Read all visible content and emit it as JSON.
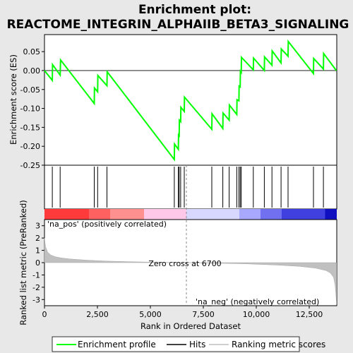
{
  "chart_data": {
    "type": "line",
    "title": "Enrichment plot:",
    "subtitle": "REACTOME_INTEGRIN_ALPHAIIB_BETA3_SIGNALING",
    "colors": {
      "enrichment": "#00ff00",
      "hits": "#000000",
      "metric": "#c0c0c0",
      "pos_label": "#ff0000",
      "neg_label": "#0000ff",
      "heat_pos": "#ff0000",
      "heat_neg": "#0000ff"
    },
    "top_panel": {
      "ylabel": "Enrichment score (ES)",
      "ylim": [
        -0.25,
        0.095
      ],
      "yticks": [
        0.05,
        0.0,
        -0.05,
        -0.1,
        -0.15,
        -0.2,
        -0.25
      ],
      "ytick_labels": [
        "0.05",
        "0.00",
        "-0.05",
        "-0.10",
        "-0.15",
        "-0.20",
        "-0.25"
      ],
      "xlim": [
        0,
        13800
      ],
      "series": [
        {
          "name": "Enrichment profile",
          "x": [
            0,
            370,
            380,
            740,
            760,
            2350,
            2360,
            2510,
            2520,
            2950,
            2960,
            6130,
            6140,
            6320,
            6330,
            6360,
            6370,
            6430,
            6440,
            6600,
            6610,
            7900,
            7910,
            8420,
            8430,
            8720,
            8730,
            9080,
            9090,
            9180,
            9190,
            9240,
            9250,
            9290,
            9300,
            9860,
            9870,
            10380,
            10390,
            10740,
            10750,
            11170,
            11180,
            11500,
            11510,
            12700,
            12710,
            13170,
            13180,
            13780
          ],
          "y": [
            0.0,
            -0.026,
            0.016,
            -0.012,
            0.028,
            -0.087,
            -0.046,
            -0.056,
            -0.013,
            -0.04,
            -0.003,
            -0.235,
            -0.194,
            -0.208,
            -0.17,
            -0.172,
            -0.131,
            -0.135,
            -0.097,
            -0.108,
            -0.07,
            -0.155,
            -0.114,
            -0.153,
            -0.112,
            -0.131,
            -0.091,
            -0.116,
            -0.077,
            -0.08,
            -0.041,
            -0.043,
            -0.002,
            -0.005,
            0.035,
            0.002,
            0.033,
            0.0,
            0.036,
            0.014,
            0.052,
            0.02,
            0.057,
            0.038,
            0.077,
            -0.008,
            0.032,
            0.004,
            0.045,
            0.0
          ]
        }
      ]
    },
    "hits": [
      370,
      740,
      2350,
      2510,
      2950,
      6130,
      6320,
      6360,
      6430,
      6600,
      7900,
      8420,
      8720,
      9080,
      9180,
      9240,
      9290,
      9860,
      10380,
      10740,
      11170,
      11500,
      12700,
      13170
    ],
    "heatmap": {
      "boundaries": [
        0,
        2100,
        3100,
        4700,
        6700,
        9200,
        10200,
        11200,
        13250,
        13800
      ]
    },
    "bottom_panel": {
      "ylabel": "Ranked list metric (PreRanked)",
      "ylim": [
        -3.5,
        3.5
      ],
      "yticks": [
        3,
        2,
        1,
        0,
        -1,
        -2,
        -3
      ],
      "ytick_labels": [
        "3",
        "2",
        "1",
        "0",
        "-1",
        "-2",
        "-3"
      ],
      "metric_x": [
        0,
        50,
        150,
        300,
        500,
        800,
        1200,
        2000,
        3000,
        4500,
        6000,
        6700,
        8000,
        9500,
        11000,
        12000,
        12800,
        13300,
        13500,
        13650,
        13720,
        13760,
        13790
      ],
      "metric_y": [
        2.0,
        1.3,
        0.85,
        0.62,
        0.48,
        0.38,
        0.3,
        0.2,
        0.12,
        0.06,
        0.02,
        0.0,
        -0.04,
        -0.1,
        -0.2,
        -0.3,
        -0.45,
        -0.65,
        -0.85,
        -1.2,
        -1.8,
        -2.6,
        -3.4
      ],
      "zero_cross_label": "Zero cross at 6700",
      "zero_cross": 6700,
      "pos_label": "'na_pos' (positively correlated)",
      "neg_label": "'na_neg' (negatively correlated)"
    },
    "xlabel": "Rank in Ordered Dataset",
    "xticks": [
      0,
      2500,
      5000,
      7500,
      10000,
      12500
    ],
    "xtick_labels": [
      "0",
      "2,500",
      "5,000",
      "7,500",
      "10,000",
      "12,500"
    ],
    "legend": [
      {
        "label": "Enrichment profile",
        "icon": "green-line"
      },
      {
        "label": "Hits",
        "icon": "black-line"
      },
      {
        "label": "Ranking metric scores",
        "icon": "gray-line"
      }
    ]
  }
}
